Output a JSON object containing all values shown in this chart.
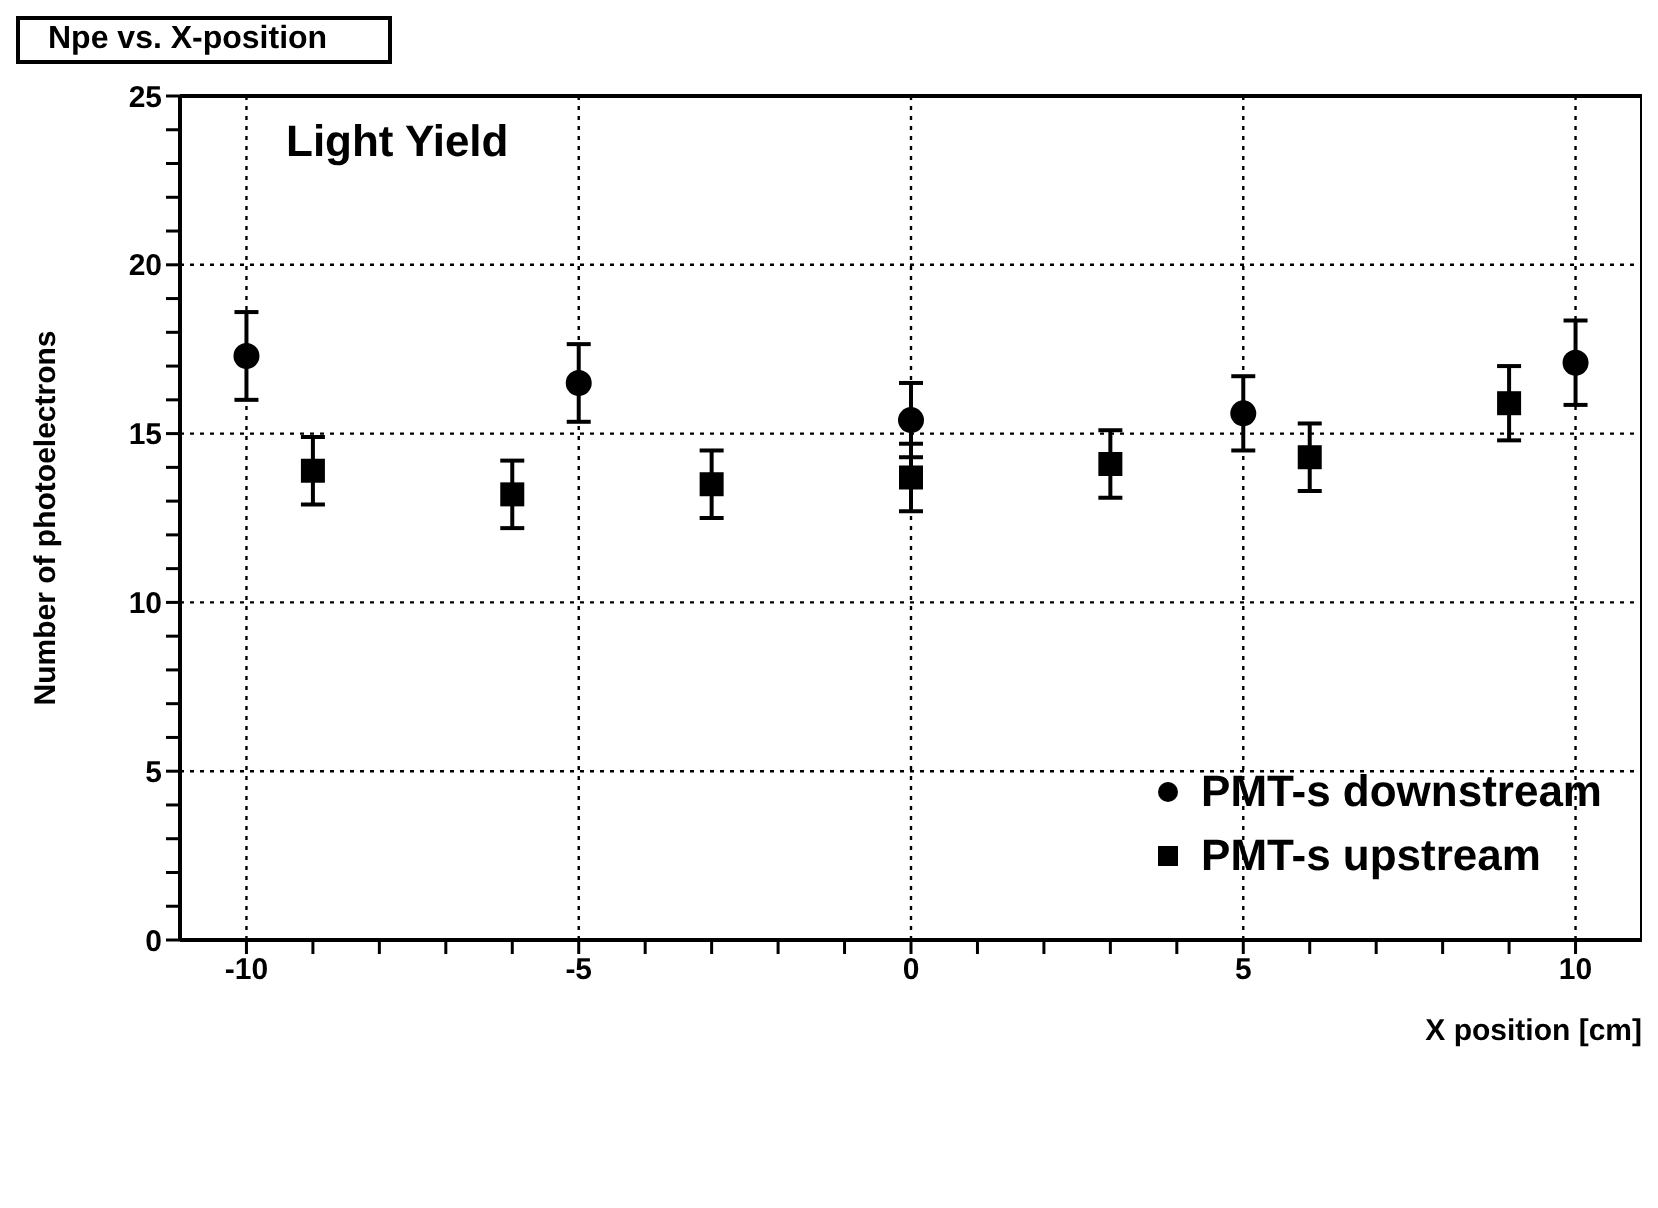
{
  "chart_data": {
    "type": "scatter",
    "title": "Npe vs. X-position",
    "annotations": [
      "Light Yield"
    ],
    "xlabel": "X position [cm]",
    "ylabel": "Number of photoelectrons",
    "xlim": [
      -11,
      11
    ],
    "ylim": [
      0,
      25
    ],
    "xticks": [
      -10,
      {
        "value": -9,
        "label": null
      },
      {
        "value": -8,
        "label": null
      },
      {
        "value": -7,
        "label": null
      },
      {
        "value": -6,
        "label": null
      },
      -5,
      {
        "value": -4,
        "label": null
      },
      {
        "value": -3,
        "label": null
      },
      {
        "value": -2,
        "label": null
      },
      {
        "value": -1,
        "label": null
      },
      0,
      {
        "value": 1,
        "label": null
      },
      {
        "value": 2,
        "label": null
      },
      {
        "value": 3,
        "label": null
      },
      {
        "value": 4,
        "label": null
      },
      5,
      {
        "value": 6,
        "label": null
      },
      {
        "value": 7,
        "label": null
      },
      {
        "value": 8,
        "label": null
      },
      {
        "value": 9,
        "label": null
      },
      10
    ],
    "yticks": [
      0,
      {
        "value": 1,
        "label": null
      },
      {
        "value": 2,
        "label": null
      },
      {
        "value": 3,
        "label": null
      },
      {
        "value": 4,
        "label": null
      },
      5,
      {
        "value": 6,
        "label": null
      },
      {
        "value": 7,
        "label": null
      },
      {
        "value": 8,
        "label": null
      },
      {
        "value": 9,
        "label": null
      },
      10,
      {
        "value": 11,
        "label": null
      },
      {
        "value": 12,
        "label": null
      },
      {
        "value": 13,
        "label": null
      },
      {
        "value": 14,
        "label": null
      },
      15,
      {
        "value": 16,
        "label": null
      },
      {
        "value": 17,
        "label": null
      },
      {
        "value": 18,
        "label": null
      },
      {
        "value": 19,
        "label": null
      },
      20,
      {
        "value": 21,
        "label": null
      },
      {
        "value": 22,
        "label": null
      },
      {
        "value": 23,
        "label": null
      },
      {
        "value": 24,
        "label": null
      },
      25
    ],
    "grid": true,
    "legend": "bottom right",
    "series": [
      {
        "name": "PMT-s downstream",
        "color": "#000000",
        "marker": "circle",
        "x": [
          -10,
          -5,
          0,
          5,
          10
        ],
        "values": [
          17.3,
          16.5,
          15.4,
          15.6,
          17.1
        ],
        "errors": [
          1.3,
          1.15,
          1.1,
          1.1,
          1.25
        ]
      },
      {
        "name": "PMT-s upstream",
        "color": "#000000",
        "marker": "square",
        "x": [
          -9,
          -6,
          -3,
          0,
          3,
          6,
          9
        ],
        "values": [
          13.9,
          13.2,
          13.5,
          13.7,
          14.1,
          14.3,
          15.9
        ],
        "errors": [
          1.0,
          1.0,
          1.0,
          1.0,
          1.0,
          1.0,
          1.1
        ]
      }
    ]
  }
}
